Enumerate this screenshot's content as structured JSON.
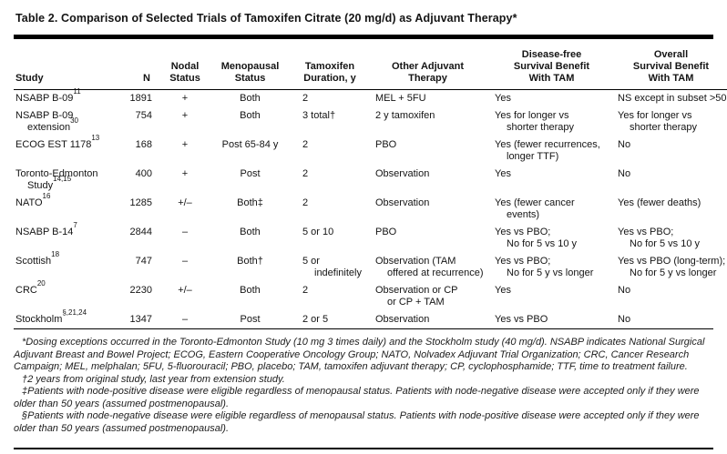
{
  "title": "Table 2. Comparison of Selected Trials of Tamoxifen Citrate (20 mg/d) as Adjuvant Therapy*",
  "table": {
    "columns": [
      {
        "id": "study",
        "lines": [
          "Study"
        ]
      },
      {
        "id": "n",
        "lines": [
          "N"
        ]
      },
      {
        "id": "nodal",
        "lines": [
          "Nodal",
          "Status"
        ]
      },
      {
        "id": "menopausal",
        "lines": [
          "Menopausal",
          "Status"
        ]
      },
      {
        "id": "duration",
        "lines": [
          "Tamoxifen",
          "Duration, y"
        ]
      },
      {
        "id": "other",
        "lines": [
          "Other Adjuvant",
          "Therapy"
        ]
      },
      {
        "id": "dfs",
        "lines": [
          "Disease-free",
          "Survival Benefit",
          "With TAM"
        ]
      },
      {
        "id": "os",
        "lines": [
          "Overall",
          "Survival Benefit",
          "With TAM"
        ]
      }
    ],
    "rows": [
      {
        "study": [
          {
            "text": "NSABP B-09",
            "sup": "11"
          }
        ],
        "n": "1891",
        "nodal": "+",
        "menopausal": "Both",
        "duration": "2",
        "other": "MEL + 5FU",
        "dfs": "Yes",
        "os": "NS except in subset >50 y"
      },
      {
        "study": [
          {
            "text": "NSABP B-09"
          },
          {
            "text": "extension",
            "sup": "30",
            "indent": true
          }
        ],
        "n": "754",
        "nodal": "+",
        "menopausal": "Both",
        "duration": "3 total†",
        "other": "2 y tamoxifen",
        "dfs": [
          "Yes for longer vs",
          {
            "text": "shorter therapy",
            "indent": true
          }
        ],
        "os": [
          "Yes for longer vs",
          {
            "text": "shorter therapy",
            "indent": true
          }
        ]
      },
      {
        "study": [
          {
            "text": "ECOG EST 1178",
            "sup": "13"
          }
        ],
        "n": "168",
        "nodal": "+",
        "menopausal": "Post 65-84 y",
        "duration": "2",
        "other": "PBO",
        "dfs": [
          "Yes (fewer recurrences,",
          {
            "text": "longer TTF)",
            "indent": true
          }
        ],
        "os": "No"
      },
      {
        "study": [
          {
            "text": "Toronto-Edmonton"
          },
          {
            "text": "Study",
            "sup": "14,15",
            "indent": true
          }
        ],
        "n": "400",
        "nodal": "+",
        "menopausal": "Post",
        "duration": "2",
        "other": "Observation",
        "dfs": "Yes",
        "os": "No"
      },
      {
        "study": [
          {
            "text": "NATO",
            "sup": "16"
          }
        ],
        "n": "1285",
        "nodal": "+/–",
        "menopausal": "Both‡",
        "duration": "2",
        "other": "Observation",
        "dfs": [
          "Yes (fewer cancer",
          {
            "text": "events)",
            "indent": true
          }
        ],
        "os": "Yes (fewer deaths)"
      },
      {
        "study": [
          {
            "text": "NSABP B-14",
            "sup": "7"
          }
        ],
        "n": "2844",
        "nodal": "–",
        "menopausal": "Both",
        "duration": "5 or 10",
        "other": "PBO",
        "dfs": [
          "Yes vs PBO;",
          {
            "text": "No for 5 vs 10 y",
            "indent": true
          }
        ],
        "os": [
          "Yes vs PBO;",
          {
            "text": "No for 5 vs 10 y",
            "indent": true
          }
        ]
      },
      {
        "study": [
          {
            "text": "Scottish",
            "sup": "18"
          }
        ],
        "n": "747",
        "nodal": "–",
        "menopausal": "Both†",
        "duration": [
          "5 or",
          {
            "text": "indefinitely",
            "indent": true
          }
        ],
        "other": [
          "Observation (TAM",
          {
            "text": "offered at recurrence)",
            "indent": true
          }
        ],
        "dfs": [
          "Yes vs PBO;",
          {
            "text": "No for 5 y vs longer",
            "indent": true
          }
        ],
        "os": [
          "Yes vs PBO (long-term);",
          {
            "text": "No for 5 y vs longer",
            "indent": true
          }
        ]
      },
      {
        "study": [
          {
            "text": "CRC",
            "sup": "20"
          }
        ],
        "n": "2230",
        "nodal": "+/–",
        "menopausal": "Both",
        "duration": "2",
        "other": [
          "Observation or CP",
          {
            "text": "or CP + TAM",
            "indent": true
          }
        ],
        "dfs": "Yes",
        "os": "No"
      },
      {
        "study": [
          {
            "text": "Stockholm",
            "sup": "§,21,24"
          }
        ],
        "n": "1347",
        "nodal": "–",
        "menopausal": "Post",
        "duration": "2 or 5",
        "other": "Observation",
        "dfs": "Yes vs PBO",
        "os": "No"
      }
    ]
  },
  "footnotes": [
    "*Dosing exceptions occurred in the Toronto-Edmonton Study (10 mg 3 times daily) and the Stockholm study (40 mg/d). NSABP indicates National Surgical Adjuvant Breast and Bowel Project; ECOG, Eastern Cooperative Oncology Group; NATO, Nolvadex Adjuvant Trial Organization; CRC, Cancer Research Campaign; MEL, melphalan; 5FU, 5-fluorouracil; PBO, placebo; TAM, tamoxifen adjuvant therapy; CP, cyclophosphamide; TTF, time to treatment failure.",
    "†2 years from original study, last year from extension study.",
    "‡Patients with node-positive disease were eligible regardless of menopausal status. Patients with node-negative disease were accepted only if they were older than 50 years (assumed postmenopausal).",
    "§Patients with node-negative disease were eligible regardless of menopausal status. Patients with node-positive disease were accepted only if they were older than 50 years (assumed postmenopausal)."
  ]
}
